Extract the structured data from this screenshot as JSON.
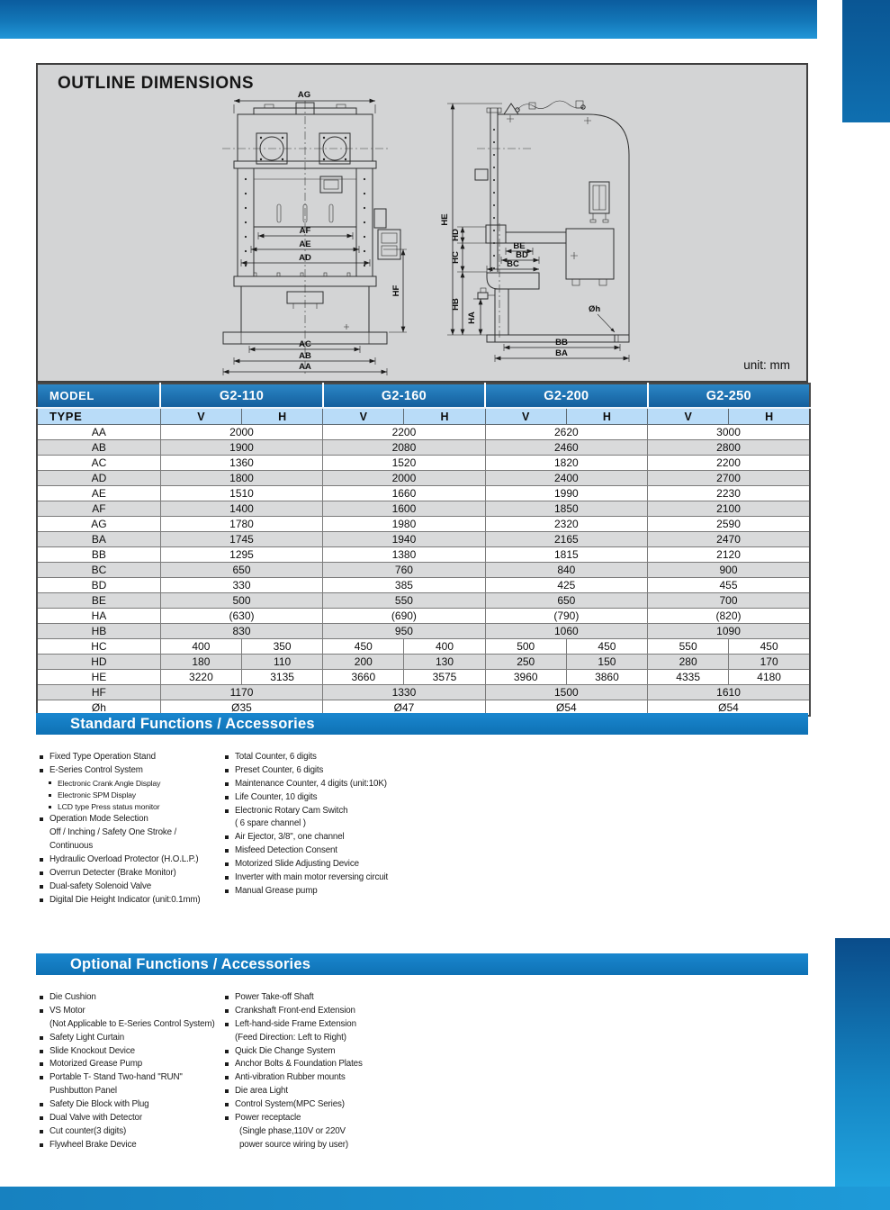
{
  "colors": {
    "accent_blue": "#1377b8",
    "table_header_blue": "#1b74b8",
    "type_row_blue": "#b9dcf8",
    "section_bar_blue": "#1180c6",
    "stripe_gray": "#d9dadb",
    "panel_gray": "#d3d4d5"
  },
  "panel": {
    "title": "OUTLINE DIMENSIONS",
    "unit_label": "unit: mm"
  },
  "drawing": {
    "front": {
      "ag": "AG",
      "af": "AF",
      "ae": "AE",
      "ad": "AD",
      "hf": "HF",
      "ac": "AC",
      "ab": "AB",
      "aa": "AA"
    },
    "side": {
      "he": "HE",
      "hd": "HD",
      "hc": "HC",
      "hb": "HB",
      "ha": "HA",
      "be": "BE",
      "bd": "BD",
      "bc": "BC",
      "oh": "Øh",
      "bb": "BB",
      "ba": "BA"
    }
  },
  "table": {
    "model_header": "MODEL",
    "type_header": "TYPE",
    "models": [
      "G2-110",
      "G2-160",
      "G2-200",
      "G2-250"
    ],
    "type_cols": [
      "V",
      "H"
    ],
    "rows": [
      {
        "label": "AA",
        "merged": true,
        "values": [
          "2000",
          "2200",
          "2620",
          "3000"
        ]
      },
      {
        "label": "AB",
        "merged": true,
        "values": [
          "1900",
          "2080",
          "2460",
          "2800"
        ]
      },
      {
        "label": "AC",
        "merged": true,
        "values": [
          "1360",
          "1520",
          "1820",
          "2200"
        ]
      },
      {
        "label": "AD",
        "merged": true,
        "values": [
          "1800",
          "2000",
          "2400",
          "2700"
        ]
      },
      {
        "label": "AE",
        "merged": true,
        "values": [
          "1510",
          "1660",
          "1990",
          "2230"
        ]
      },
      {
        "label": "AF",
        "merged": true,
        "values": [
          "1400",
          "1600",
          "1850",
          "2100"
        ]
      },
      {
        "label": "AG",
        "merged": true,
        "values": [
          "1780",
          "1980",
          "2320",
          "2590"
        ]
      },
      {
        "label": "BA",
        "merged": true,
        "values": [
          "1745",
          "1940",
          "2165",
          "2470"
        ]
      },
      {
        "label": "BB",
        "merged": true,
        "values": [
          "1295",
          "1380",
          "1815",
          "2120"
        ]
      },
      {
        "label": "BC",
        "merged": true,
        "values": [
          "650",
          "760",
          "840",
          "900"
        ]
      },
      {
        "label": "BD",
        "merged": true,
        "values": [
          "330",
          "385",
          "425",
          "455"
        ]
      },
      {
        "label": "BE",
        "merged": true,
        "values": [
          "500",
          "550",
          "650",
          "700"
        ]
      },
      {
        "label": "HA",
        "merged": true,
        "values": [
          "(630)",
          "(690)",
          "(790)",
          "(820)"
        ]
      },
      {
        "label": "HB",
        "merged": true,
        "values": [
          "830",
          "950",
          "1060",
          "1090"
        ]
      },
      {
        "label": "HC",
        "merged": false,
        "values": [
          "400",
          "350",
          "450",
          "400",
          "500",
          "450",
          "550",
          "450"
        ]
      },
      {
        "label": "HD",
        "merged": false,
        "values": [
          "180",
          "110",
          "200",
          "130",
          "250",
          "150",
          "280",
          "170"
        ]
      },
      {
        "label": "HE",
        "merged": false,
        "values": [
          "3220",
          "3135",
          "3660",
          "3575",
          "3960",
          "3860",
          "4335",
          "4180"
        ]
      },
      {
        "label": "HF",
        "merged": true,
        "values": [
          "1170",
          "1330",
          "1500",
          "1610"
        ]
      },
      {
        "label": "Øh",
        "merged": true,
        "values": [
          "Ø35",
          "Ø47",
          "Ø54",
          "Ø54"
        ]
      }
    ]
  },
  "standard": {
    "title": "Standard Functions / Accessories",
    "columns": [
      [
        {
          "style": "main",
          "text": "Fixed Type Operation Stand"
        },
        {
          "style": "main",
          "text": "E-Series Control System"
        },
        {
          "style": "sub",
          "text": "Electronic Crank Angle Display"
        },
        {
          "style": "sub",
          "text": "Electronic SPM Display"
        },
        {
          "style": "sub",
          "text": "LCD type Press status monitor"
        },
        {
          "style": "main",
          "text": "Operation Mode Selection"
        },
        {
          "style": "cont",
          "text": "Off / Inching / Safety One Stroke /"
        },
        {
          "style": "cont",
          "text": "Continuous"
        },
        {
          "style": "main",
          "text": "Hydraulic Overload Protector (H.O.L.P.)"
        },
        {
          "style": "main",
          "text": "Overrun Detecter (Brake Monitor)"
        },
        {
          "style": "main",
          "text": "Dual-safety Solenoid Valve"
        },
        {
          "style": "main",
          "text": "Digital Die Height Indicator (unit:0.1mm)"
        }
      ],
      [
        {
          "style": "main",
          "text": "Total Counter, 6 digits"
        },
        {
          "style": "main",
          "text": "Preset Counter, 6 digits"
        },
        {
          "style": "main",
          "text": "Maintenance Counter, 4 digits (unit:10K)"
        },
        {
          "style": "main",
          "text": "Life Counter, 10 digits"
        },
        {
          "style": "main",
          "text": "Electronic Rotary Cam Switch"
        },
        {
          "style": "cont",
          "text": "( 6 spare channel )"
        },
        {
          "style": "main",
          "text": "Air Ejector, 3/8\", one channel"
        },
        {
          "style": "main",
          "text": "Misfeed Detection Consent"
        },
        {
          "style": "main",
          "text": "Motorized Slide Adjusting Device"
        },
        {
          "style": "main",
          "text": "Inverter with main motor reversing circuit"
        },
        {
          "style": "main",
          "text": "Manual Grease pump"
        }
      ]
    ]
  },
  "optional": {
    "title": "Optional Functions / Accessories",
    "columns": [
      [
        {
          "style": "main",
          "text": "Die Cushion"
        },
        {
          "style": "main",
          "text": "VS Motor"
        },
        {
          "style": "cont",
          "text": "(Not Applicable to E-Series Control System)"
        },
        {
          "style": "main",
          "text": "Safety Light Curtain"
        },
        {
          "style": "main",
          "text": "Slide Knockout Device"
        },
        {
          "style": "main",
          "text": "Motorized Grease Pump"
        },
        {
          "style": "main",
          "text": "Portable T- Stand Two-hand \"RUN\""
        },
        {
          "style": "cont",
          "text": "Pushbutton Panel"
        },
        {
          "style": "main",
          "text": "Safety Die Block with Plug"
        },
        {
          "style": "main",
          "text": "Dual Valve with Detector"
        },
        {
          "style": "main",
          "text": "Cut counter(3 digits)"
        },
        {
          "style": "main",
          "text": "Flywheel Brake Device"
        }
      ],
      [
        {
          "style": "main",
          "text": "Power Take-off Shaft"
        },
        {
          "style": "main",
          "text": "Crankshaft Front-end Extension"
        },
        {
          "style": "main",
          "text": "Left-hand-side Frame Extension"
        },
        {
          "style": "cont",
          "text": "(Feed Direction: Left to Right)"
        },
        {
          "style": "main",
          "text": "Quick Die Change System"
        },
        {
          "style": "main",
          "text": "Anchor Bolts & Foundation Plates"
        },
        {
          "style": "main",
          "text": "Anti-vibration Rubber mounts"
        },
        {
          "style": "main",
          "text": "Die area Light"
        },
        {
          "style": "main",
          "text": "Control System(MPC Series)"
        },
        {
          "style": "main",
          "text": "Power receptacle"
        },
        {
          "style": "cont2",
          "text": "(Single phase,110V or 220V"
        },
        {
          "style": "cont2",
          "text": "power source wiring by user)"
        }
      ]
    ]
  }
}
